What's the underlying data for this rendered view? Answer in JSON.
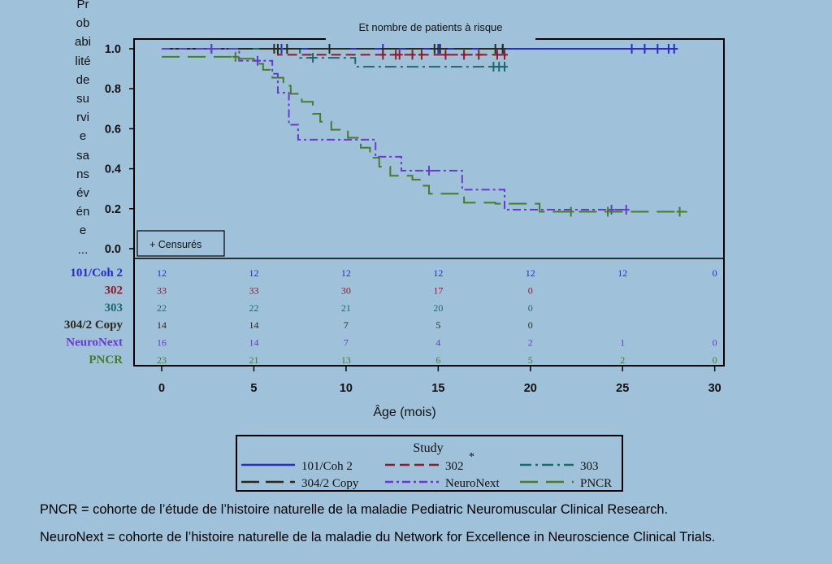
{
  "chart_data": {
    "type": "line",
    "subtitle": "Et nombre de patients à risque",
    "ylabel_fragments": [
      "Pr",
      "ob",
      "abi",
      "lité",
      "de",
      "su",
      "rvi",
      "e",
      "sa",
      "ns",
      "év",
      "én",
      "e",
      "..."
    ],
    "xlabel": "Âge (mois)",
    "xlim": [
      -1.5,
      30.5
    ],
    "ylim": [
      0,
      1.05
    ],
    "xticks": [
      "0",
      "5",
      "10",
      "15",
      "20",
      "25",
      "30"
    ],
    "yticks": [
      "0.0",
      "0.2",
      "0.4",
      "0.6",
      "0.8",
      "1.0"
    ],
    "censor_box_label": "+ Censurés",
    "legend_title": "Study",
    "legend_star": "*",
    "series": [
      {
        "name": "101/Coh 2",
        "color": "#2a2ad0",
        "dash": "",
        "steps": [
          [
            0,
            1.0
          ],
          [
            28,
            1.0
          ]
        ],
        "censors": [
          [
            2.7,
            1.0
          ],
          [
            6.5,
            1.0
          ],
          [
            12,
            1.0
          ],
          [
            15,
            1.0
          ],
          [
            18.5,
            1.0
          ],
          [
            25.5,
            1.0
          ],
          [
            26.2,
            1.0
          ],
          [
            26.9,
            1.0
          ],
          [
            27.5,
            1.0
          ],
          [
            27.8,
            1.0
          ]
        ]
      },
      {
        "name": "302",
        "color": "#8c1a2a",
        "dash": "12,6",
        "steps": [
          [
            0,
            1.0
          ],
          [
            6.3,
            1.0
          ],
          [
            6.3,
            0.97
          ],
          [
            18.5,
            0.97
          ]
        ],
        "censors": [
          [
            12,
            0.97
          ],
          [
            12.7,
            0.97
          ],
          [
            12.9,
            0.97
          ],
          [
            13.6,
            0.97
          ],
          [
            14.1,
            0.97
          ],
          [
            15.4,
            0.97
          ],
          [
            16.4,
            0.97
          ],
          [
            17.2,
            0.97
          ],
          [
            18.2,
            0.97
          ],
          [
            18.6,
            0.97
          ]
        ]
      },
      {
        "name": "303",
        "color": "#1a6a6a",
        "dash": "14,5,3,5",
        "steps": [
          [
            0,
            1.0
          ],
          [
            7.5,
            1.0
          ],
          [
            7.5,
            0.955
          ],
          [
            10.5,
            0.955
          ],
          [
            10.5,
            0.91
          ],
          [
            18.7,
            0.91
          ]
        ],
        "censors": [
          [
            8.2,
            0.955
          ],
          [
            18,
            0.91
          ],
          [
            18.3,
            0.91
          ],
          [
            18.6,
            0.91
          ]
        ]
      },
      {
        "name": "304/2 Copy",
        "color": "#2a2a1a",
        "dash": "22,8",
        "steps": [
          [
            0,
            1.0
          ],
          [
            18.5,
            1.0
          ]
        ],
        "censors": [
          [
            6.1,
            1.0
          ],
          [
            6.3,
            1.0
          ],
          [
            6.8,
            1.0
          ],
          [
            9.1,
            1.0
          ],
          [
            14.8,
            1.0
          ],
          [
            15.1,
            1.0
          ],
          [
            18.1,
            1.0
          ],
          [
            18.5,
            1.0
          ]
        ]
      },
      {
        "name": "NeuroNext",
        "color": "#6a3ad0",
        "dash": "10,4,3,4",
        "steps": [
          [
            0,
            1.0
          ],
          [
            4.2,
            1.0
          ],
          [
            4.2,
            0.94
          ],
          [
            6.0,
            0.94
          ],
          [
            6.0,
            0.875
          ],
          [
            6.3,
            0.875
          ],
          [
            6.3,
            0.78
          ],
          [
            6.9,
            0.78
          ],
          [
            6.9,
            0.62
          ],
          [
            7.4,
            0.62
          ],
          [
            7.4,
            0.545
          ],
          [
            11.6,
            0.545
          ],
          [
            11.6,
            0.46
          ],
          [
            13.0,
            0.46
          ],
          [
            13.0,
            0.39
          ],
          [
            16.3,
            0.39
          ],
          [
            16.3,
            0.295
          ],
          [
            18.6,
            0.295
          ],
          [
            18.6,
            0.195
          ],
          [
            25.3,
            0.195
          ]
        ],
        "censors": [
          [
            2.7,
            1.0
          ],
          [
            5.2,
            0.94
          ],
          [
            14.5,
            0.39
          ],
          [
            24.4,
            0.195
          ],
          [
            25.2,
            0.195
          ]
        ]
      },
      {
        "name": "PNCR",
        "color": "#4a7a2a",
        "dash": "22,10",
        "steps": [
          [
            0,
            0.96
          ],
          [
            4.0,
            0.96
          ],
          [
            4.0,
            0.95
          ],
          [
            5.0,
            0.95
          ],
          [
            5.0,
            0.925
          ],
          [
            5.5,
            0.925
          ],
          [
            5.5,
            0.895
          ],
          [
            6.0,
            0.895
          ],
          [
            6.0,
            0.855
          ],
          [
            6.6,
            0.855
          ],
          [
            6.6,
            0.815
          ],
          [
            7.0,
            0.815
          ],
          [
            7.0,
            0.775
          ],
          [
            7.6,
            0.775
          ],
          [
            7.6,
            0.735
          ],
          [
            8.2,
            0.735
          ],
          [
            8.2,
            0.675
          ],
          [
            8.6,
            0.675
          ],
          [
            8.6,
            0.635
          ],
          [
            9.2,
            0.635
          ],
          [
            9.2,
            0.595
          ],
          [
            10.1,
            0.595
          ],
          [
            10.1,
            0.555
          ],
          [
            10.8,
            0.555
          ],
          [
            10.8,
            0.505
          ],
          [
            11.3,
            0.505
          ],
          [
            11.3,
            0.455
          ],
          [
            11.8,
            0.455
          ],
          [
            11.8,
            0.41
          ],
          [
            12.4,
            0.41
          ],
          [
            12.4,
            0.365
          ],
          [
            13.6,
            0.365
          ],
          [
            13.6,
            0.345
          ],
          [
            14.1,
            0.345
          ],
          [
            14.1,
            0.315
          ],
          [
            14.5,
            0.315
          ],
          [
            14.5,
            0.275
          ],
          [
            16.4,
            0.275
          ],
          [
            16.4,
            0.23
          ],
          [
            18.1,
            0.23
          ],
          [
            18.1,
            0.225
          ],
          [
            20.5,
            0.225
          ],
          [
            20.5,
            0.185
          ],
          [
            28.5,
            0.185
          ]
        ],
        "censors": [
          [
            4.0,
            0.96
          ],
          [
            22.2,
            0.185
          ],
          [
            24.2,
            0.185
          ],
          [
            28.1,
            0.185
          ]
        ]
      }
    ],
    "at_risk": {
      "times": [
        0,
        5,
        10,
        15,
        20,
        25,
        30
      ],
      "rows": [
        {
          "label": "101/Coh 2",
          "color": "#2a2ad0",
          "values": [
            "12",
            "12",
            "12",
            "12",
            "12",
            "12",
            "0"
          ]
        },
        {
          "label": "302",
          "color": "#8c1a2a",
          "values": [
            "33",
            "33",
            "30",
            "17",
            "0"
          ]
        },
        {
          "label": "303",
          "color": "#1a6a6a",
          "values": [
            "22",
            "22",
            "21",
            "20",
            "0"
          ]
        },
        {
          "label": "304/2 Copy",
          "color": "#2a2a1a",
          "values": [
            "14",
            "14",
            "7",
            "5",
            "0"
          ]
        },
        {
          "label": "NeuroNext",
          "color": "#6a3ad0",
          "values": [
            "16",
            "14",
            "7",
            "4",
            "2",
            "1",
            "0"
          ]
        },
        {
          "label": "PNCR",
          "color": "#4a7a2a",
          "values": [
            "23",
            "21",
            "13",
            "6",
            "5",
            "2",
            "0"
          ]
        }
      ]
    }
  },
  "footnotes": {
    "pncr": "PNCR = cohorte de l’étude de l’histoire naturelle de la maladie Pediatric Neuromuscular Clinical Research.",
    "neuronext": "NeuroNext = cohorte de l’histoire naturelle de la maladie du Network for Excellence in Neuroscience Clinical Trials."
  }
}
